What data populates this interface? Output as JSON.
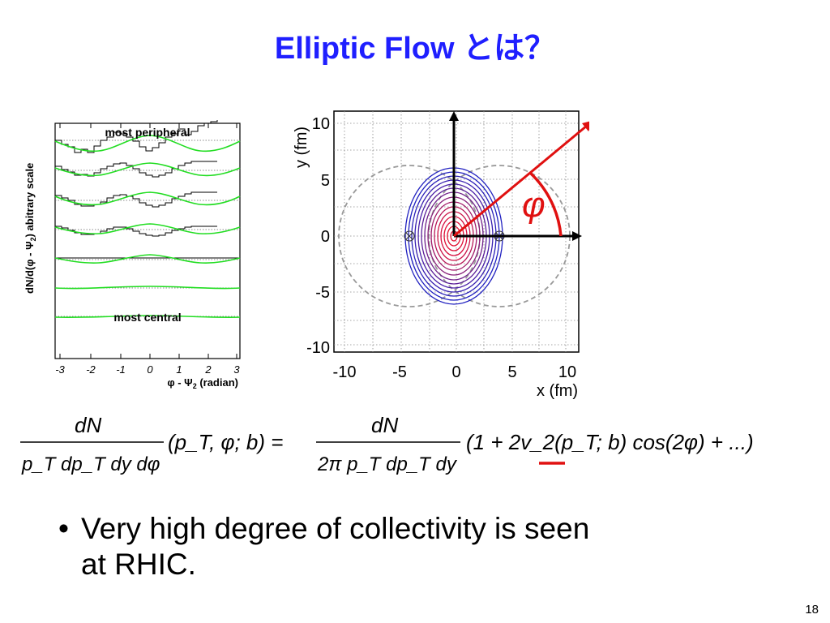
{
  "title": "Elliptic Flow とは？",
  "left_plot": {
    "ylabel_main": "dN/d(φ - Ψ",
    "ylabel_sub": "2",
    "ylabel_end": ") abitrary scale",
    "label_top": "most peripheral",
    "label_bottom": "most central",
    "xticks": [
      "-3",
      "-2",
      "-1",
      "0",
      "1",
      "2",
      "3"
    ],
    "xlabel_main": "φ - Ψ",
    "xlabel_sub": "2",
    "xlabel_end": " (radian)"
  },
  "right_plot": {
    "xlabel": "x (fm)",
    "ylabel": "y (fm)",
    "xticks": [
      "-10",
      "-5",
      "0",
      "5",
      "10"
    ],
    "yticks": [
      "10",
      "5",
      "0",
      "-5",
      "-10"
    ],
    "angle_symbol": "φ"
  },
  "formula": {
    "lhs_num": "dN",
    "lhs_den": "p_T dp_T dy dφ",
    "lhs_args": "(p_T, φ; b) =",
    "rhs_num": "dN",
    "rhs_den": "2π p_T dp_T dy",
    "rhs_paren": "(1 + 2v_2(p_T; b) cos(2φ) + ...)"
  },
  "bullet": {
    "line1": "Very high degree of collectivity is seen",
    "line2": "at RHIC."
  },
  "page_number": "18",
  "colors": {
    "title": "#1f1fff",
    "fit_curve": "#22dd22",
    "contour_outer": "#2020c0",
    "contour_inner": "#e01030",
    "arrow": "#e01010"
  }
}
